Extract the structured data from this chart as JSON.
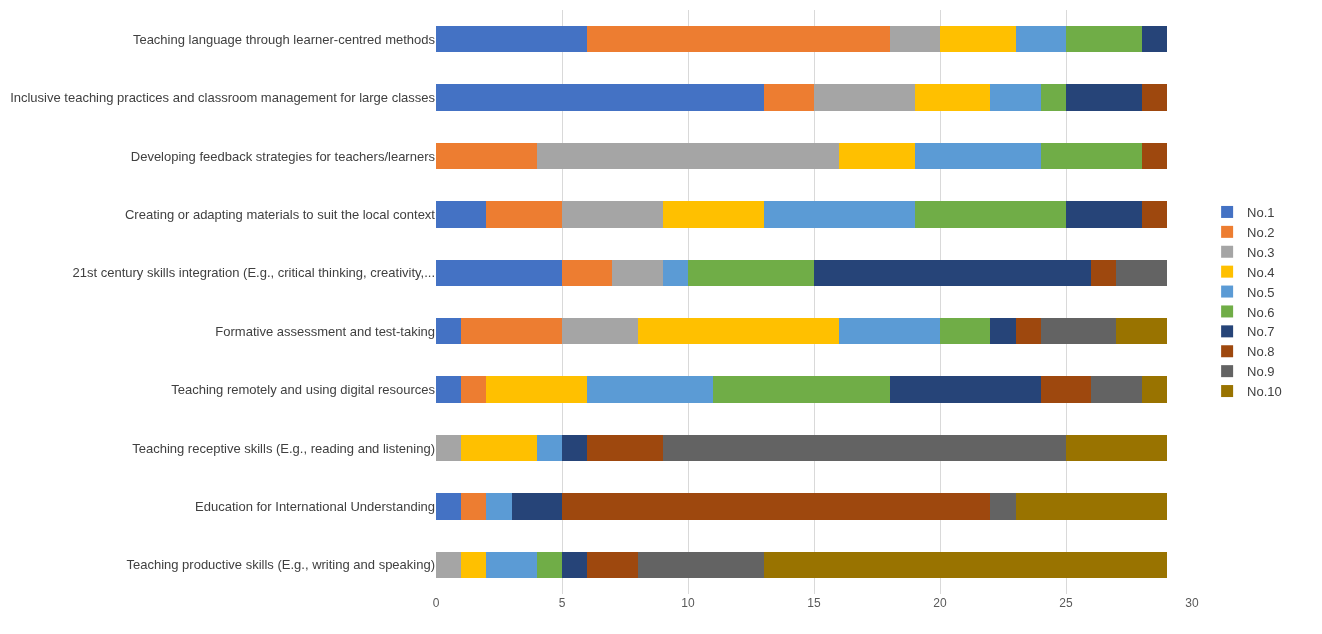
{
  "chart_data": {
    "type": "bar",
    "orientation": "horizontal",
    "stacked": true,
    "categories": [
      "Teaching language through learner-centred methods",
      "Inclusive teaching practices and classroom management for large classes",
      "Developing feedback strategies for teachers/learners",
      "Creating or adapting materials to suit the local context",
      "21st century skills integration (E.g., critical thinking, creativity,...",
      "Formative assessment and test-taking",
      "Teaching remotely and using digital resources",
      "Teaching receptive skills (E.g., reading and listening)",
      "Education for International Understanding",
      "Teaching productive skills (E.g., writing and speaking)"
    ],
    "series": [
      {
        "name": "No.1",
        "color": "#4472c4",
        "values": [
          6,
          13,
          0,
          2,
          5,
          1,
          1,
          0,
          1,
          0
        ]
      },
      {
        "name": "No.2",
        "color": "#ed7d31",
        "values": [
          12,
          2,
          4,
          3,
          2,
          4,
          1,
          0,
          1,
          0
        ]
      },
      {
        "name": "No.3",
        "color": "#a5a5a5",
        "values": [
          2,
          4,
          12,
          4,
          2,
          3,
          0,
          1,
          0,
          1
        ]
      },
      {
        "name": "No.4",
        "color": "#ffc000",
        "values": [
          3,
          3,
          3,
          4,
          0,
          8,
          4,
          3,
          0,
          1
        ]
      },
      {
        "name": "No.5",
        "color": "#5b9bd5",
        "values": [
          2,
          2,
          5,
          6,
          1,
          4,
          5,
          1,
          1,
          2
        ]
      },
      {
        "name": "No.6",
        "color": "#70ad47",
        "values": [
          3,
          1,
          4,
          6,
          5,
          2,
          7,
          0,
          0,
          1
        ]
      },
      {
        "name": "No.7",
        "color": "#264478",
        "values": [
          1,
          3,
          0,
          3,
          11,
          1,
          6,
          1,
          2,
          1
        ]
      },
      {
        "name": "No.8",
        "color": "#9e480e",
        "values": [
          0,
          1,
          1,
          1,
          1,
          1,
          2,
          3,
          17,
          2
        ]
      },
      {
        "name": "No.9",
        "color": "#636363",
        "values": [
          0,
          0,
          0,
          0,
          2,
          3,
          2,
          16,
          1,
          5
        ]
      },
      {
        "name": "No.10",
        "color": "#997300",
        "values": [
          0,
          0,
          0,
          0,
          0,
          2,
          1,
          4,
          6,
          16
        ]
      }
    ],
    "xlim": [
      0,
      30
    ],
    "xticks": [
      0,
      5,
      10,
      15,
      20,
      25,
      30
    ],
    "grid": "x",
    "legend": "right"
  }
}
